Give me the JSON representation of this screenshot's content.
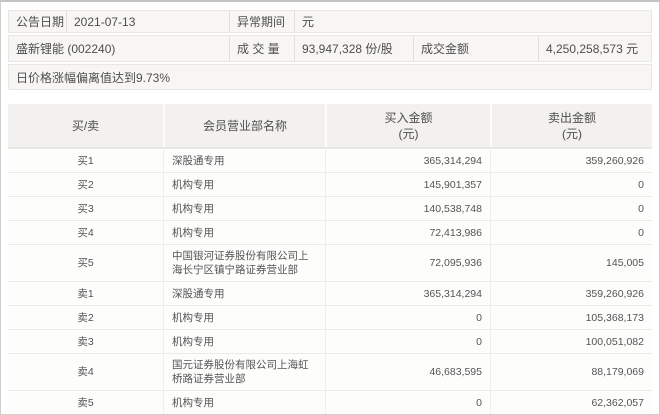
{
  "colors": {
    "summary_bg": "#f7f6f4",
    "table_header_bg": "#f2f1ef",
    "row_bg": "#fdfdfc",
    "border": "#eceae7",
    "text": "#4e4e4e"
  },
  "summary": {
    "announce_date_label": "公告日期",
    "announce_date": "2021-07-13",
    "abnormal_period_label": "异常期间",
    "abnormal_period_value": "元",
    "stock_name": "盛新锂能 (002240)",
    "volume_label": "成 交 量",
    "volume_value": "93,947,328 份/股",
    "turnover_label": "成交金额",
    "turnover_value": "4,250,258,573 元",
    "note": "日价格涨幅偏离值达到9.73%"
  },
  "table": {
    "columns": [
      {
        "label": "买/卖",
        "sub": ""
      },
      {
        "label": "会员营业部名称",
        "sub": ""
      },
      {
        "label": "买入金额",
        "sub": "(元)"
      },
      {
        "label": "卖出金额",
        "sub": "(元)"
      }
    ],
    "rows": [
      {
        "side": "买1",
        "name": "深股通专用",
        "buy": "365,314,294",
        "sell": "359,260,926"
      },
      {
        "side": "买2",
        "name": "机构专用",
        "buy": "145,901,357",
        "sell": "0"
      },
      {
        "side": "买3",
        "name": "机构专用",
        "buy": "140,538,748",
        "sell": "0"
      },
      {
        "side": "买4",
        "name": "机构专用",
        "buy": "72,413,986",
        "sell": "0"
      },
      {
        "side": "买5",
        "name": "中国银河证券股份有限公司上海长宁区镇宁路证券营业部",
        "buy": "72,095,936",
        "sell": "145,005"
      },
      {
        "side": "卖1",
        "name": "深股通专用",
        "buy": "365,314,294",
        "sell": "359,260,926"
      },
      {
        "side": "卖2",
        "name": "机构专用",
        "buy": "0",
        "sell": "105,368,173"
      },
      {
        "side": "卖3",
        "name": "机构专用",
        "buy": "0",
        "sell": "100,051,082"
      },
      {
        "side": "卖4",
        "name": "国元证券股份有限公司上海虹桥路证券营业部",
        "buy": "46,683,595",
        "sell": "88,179,069"
      },
      {
        "side": "卖5",
        "name": "机构专用",
        "buy": "0",
        "sell": "62,362,057"
      }
    ]
  }
}
